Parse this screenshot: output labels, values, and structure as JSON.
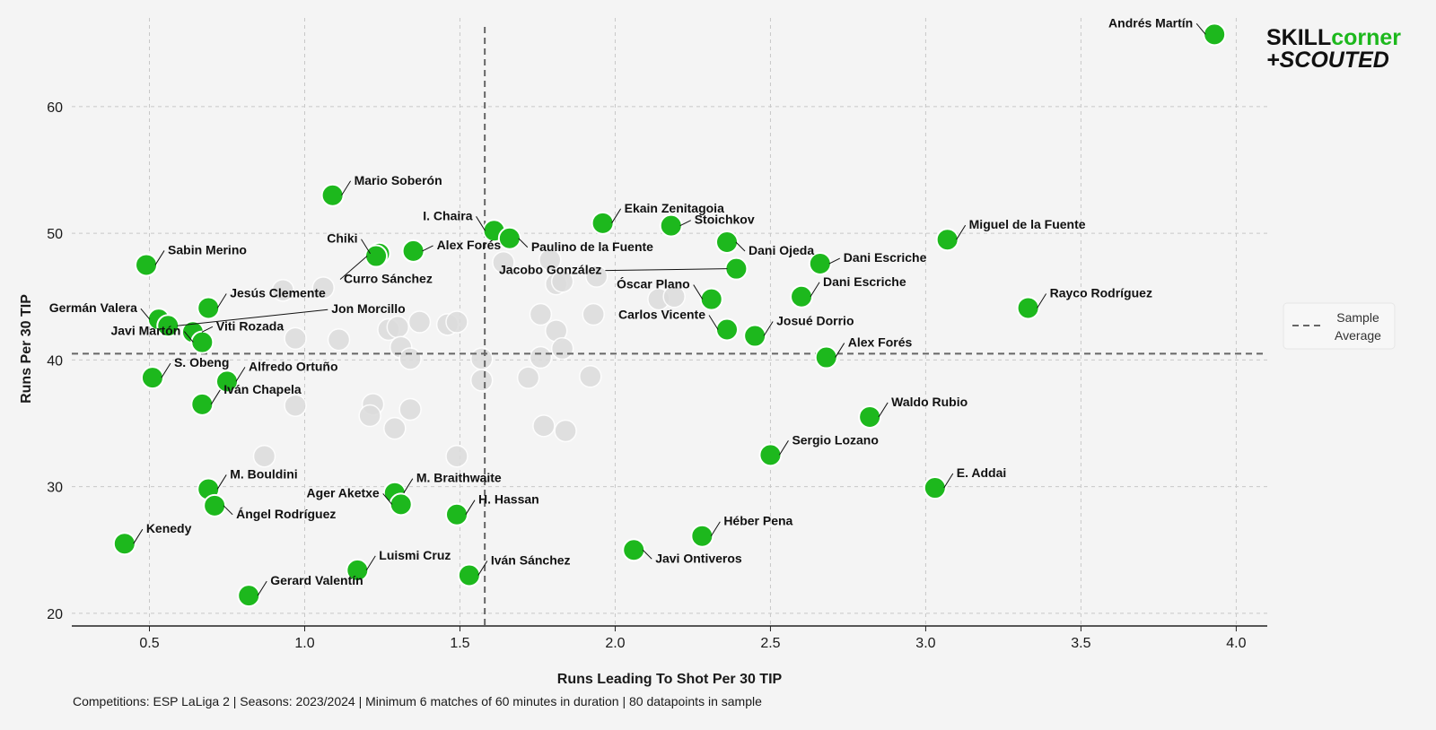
{
  "chart_data": {
    "type": "scatter",
    "xlabel": "Runs Leading To Shot Per 30 TIP",
    "ylabel": "Runs Per 30 TIP",
    "xlim": [
      0.25,
      4.1
    ],
    "ylim": [
      19,
      67
    ],
    "x_ticks": [
      0.5,
      1.0,
      1.5,
      2.0,
      2.5,
      3.0,
      3.5,
      4.0
    ],
    "x_tick_labels": [
      "0.5",
      "1.0",
      "1.5",
      "2.0",
      "2.5",
      "3.0",
      "3.5",
      "4.0"
    ],
    "y_ticks": [
      20,
      30,
      40,
      50,
      60
    ],
    "y_tick_labels": [
      "20",
      "30",
      "40",
      "50",
      "60"
    ],
    "grid": true,
    "averages": {
      "x": 1.58,
      "y": 40.5
    },
    "legend": {
      "label": "Sample Average",
      "placement": "right",
      "lines": [
        "Sample",
        "Average"
      ]
    },
    "highlight_color": "#1db81d",
    "background_color": "#dcdcdc",
    "highlighted": [
      {
        "name": "Andrés Martín",
        "x": 3.93,
        "y": 65.7,
        "label_pos": "left"
      },
      {
        "name": "Mario Soberón",
        "x": 1.09,
        "y": 53.0,
        "label_pos": "upper-right"
      },
      {
        "name": "I. Chaira",
        "x": 1.61,
        "y": 50.2,
        "label_pos": "upper-left"
      },
      {
        "name": "Ekain Zenitagoia",
        "x": 1.96,
        "y": 50.8,
        "label_pos": "upper-right"
      },
      {
        "name": "Stoichkov",
        "x": 2.18,
        "y": 50.6,
        "label_pos": "right"
      },
      {
        "name": "Miguel de la Fuente",
        "x": 3.07,
        "y": 49.5,
        "label_pos": "upper-right"
      },
      {
        "name": "Sabin Merino",
        "x": 0.49,
        "y": 47.5,
        "label_pos": "upper-right"
      },
      {
        "name": "Chiki",
        "x": 1.24,
        "y": 48.4,
        "label_pos": "upper-left"
      },
      {
        "name": "Alex Forés",
        "x": 1.35,
        "y": 48.6,
        "label_pos": "right"
      },
      {
        "name": "Curro Sánchez",
        "x": 1.23,
        "y": 48.2,
        "label_pos": "below"
      },
      {
        "name": "Paulino de la Fuente",
        "x": 1.66,
        "y": 49.6,
        "label_pos": "lower-right"
      },
      {
        "name": "Dani Ojeda",
        "x": 2.36,
        "y": 49.3,
        "label_pos": "lower-right"
      },
      {
        "name": "Dani Escriche",
        "x": 2.66,
        "y": 47.6,
        "label_pos": "right"
      },
      {
        "name": "Jacobo González",
        "x": 2.39,
        "y": 47.2,
        "label_pos": "far-left"
      },
      {
        "name": "Dani Escriche",
        "x": 2.6,
        "y": 45.0,
        "label_pos": "upper-right"
      },
      {
        "name": "Rayco Rodríguez",
        "x": 3.33,
        "y": 44.1,
        "label_pos": "upper-right"
      },
      {
        "name": "Jesús Clemente",
        "x": 0.69,
        "y": 44.1,
        "label_pos": "upper-right"
      },
      {
        "name": "Óscar Plano",
        "x": 2.31,
        "y": 44.8,
        "label_pos": "upper-left"
      },
      {
        "name": "Germán Valera",
        "x": 0.53,
        "y": 43.2,
        "label_pos": "left"
      },
      {
        "name": "Jon Morcillo",
        "x": 0.56,
        "y": 42.7,
        "label_pos": "far-right"
      },
      {
        "name": "Carlos Vicente",
        "x": 2.36,
        "y": 42.4,
        "label_pos": "upper-left"
      },
      {
        "name": "Josué Dorrio",
        "x": 2.45,
        "y": 41.9,
        "label_pos": "upper-right"
      },
      {
        "name": "Viti Rozada",
        "x": 0.64,
        "y": 42.2,
        "label_pos": "right"
      },
      {
        "name": "Javi Martón",
        "x": 0.67,
        "y": 41.4,
        "label_pos": "left"
      },
      {
        "name": "Alex Forés",
        "x": 2.68,
        "y": 40.2,
        "label_pos": "upper-right"
      },
      {
        "name": "S. Obeng",
        "x": 0.51,
        "y": 38.6,
        "label_pos": "upper-right"
      },
      {
        "name": "Alfredo Ortuño",
        "x": 0.75,
        "y": 38.3,
        "label_pos": "upper-right"
      },
      {
        "name": "Iván Chapela",
        "x": 0.67,
        "y": 36.5,
        "label_pos": "upper-right"
      },
      {
        "name": "Waldo Rubio",
        "x": 2.82,
        "y": 35.5,
        "label_pos": "upper-right"
      },
      {
        "name": "Sergio Lozano",
        "x": 2.5,
        "y": 32.5,
        "label_pos": "upper-right"
      },
      {
        "name": "E. Addai",
        "x": 3.03,
        "y": 29.9,
        "label_pos": "upper-right"
      },
      {
        "name": "M. Bouldini",
        "x": 0.69,
        "y": 29.8,
        "label_pos": "upper-right"
      },
      {
        "name": "M. Braithwaite",
        "x": 1.29,
        "y": 29.5,
        "label_pos": "upper-right"
      },
      {
        "name": "Ager Aketxe",
        "x": 1.31,
        "y": 28.6,
        "label_pos": "left"
      },
      {
        "name": "Ángel Rodríguez",
        "x": 0.71,
        "y": 28.5,
        "label_pos": "lower-right"
      },
      {
        "name": "H. Hassan",
        "x": 1.49,
        "y": 27.8,
        "label_pos": "upper-right"
      },
      {
        "name": "Héber Pena",
        "x": 2.28,
        "y": 26.1,
        "label_pos": "upper-right"
      },
      {
        "name": "Kenedy",
        "x": 0.42,
        "y": 25.5,
        "label_pos": "upper-right"
      },
      {
        "name": "Javi Ontiveros",
        "x": 2.06,
        "y": 25.0,
        "label_pos": "lower-right"
      },
      {
        "name": "Luismi Cruz",
        "x": 1.17,
        "y": 23.4,
        "label_pos": "upper-right"
      },
      {
        "name": "Iván Sánchez",
        "x": 1.53,
        "y": 23.0,
        "label_pos": "upper-right"
      },
      {
        "name": "Gerard Valentín",
        "x": 0.82,
        "y": 21.4,
        "label_pos": "upper-right"
      }
    ],
    "background": [
      {
        "x": 0.93,
        "y": 45.5
      },
      {
        "x": 1.06,
        "y": 45.7
      },
      {
        "x": 0.97,
        "y": 41.7
      },
      {
        "x": 1.11,
        "y": 41.6
      },
      {
        "x": 1.27,
        "y": 42.4
      },
      {
        "x": 1.3,
        "y": 42.6
      },
      {
        "x": 1.37,
        "y": 43.0
      },
      {
        "x": 1.46,
        "y": 42.8
      },
      {
        "x": 1.49,
        "y": 43.0
      },
      {
        "x": 1.31,
        "y": 41.0
      },
      {
        "x": 1.34,
        "y": 40.1
      },
      {
        "x": 1.22,
        "y": 36.5
      },
      {
        "x": 1.21,
        "y": 35.6
      },
      {
        "x": 1.29,
        "y": 34.6
      },
      {
        "x": 1.34,
        "y": 36.1
      },
      {
        "x": 0.97,
        "y": 36.4
      },
      {
        "x": 0.87,
        "y": 32.4
      },
      {
        "x": 1.49,
        "y": 32.4
      },
      {
        "x": 1.57,
        "y": 40.1
      },
      {
        "x": 1.57,
        "y": 38.4
      },
      {
        "x": 1.64,
        "y": 47.7
      },
      {
        "x": 1.79,
        "y": 47.9
      },
      {
        "x": 1.81,
        "y": 46.0
      },
      {
        "x": 1.83,
        "y": 46.2
      },
      {
        "x": 1.94,
        "y": 46.6
      },
      {
        "x": 1.76,
        "y": 43.6
      },
      {
        "x": 1.81,
        "y": 42.3
      },
      {
        "x": 1.83,
        "y": 40.9
      },
      {
        "x": 1.93,
        "y": 43.6
      },
      {
        "x": 1.76,
        "y": 40.2
      },
      {
        "x": 1.72,
        "y": 38.6
      },
      {
        "x": 1.92,
        "y": 38.7
      },
      {
        "x": 1.77,
        "y": 34.8
      },
      {
        "x": 1.84,
        "y": 34.4
      },
      {
        "x": 2.14,
        "y": 44.8
      },
      {
        "x": 2.19,
        "y": 45.0
      }
    ],
    "footer": "Competitions: ESP LaLiga 2 | Seasons: 2023/2024 | Minimum 6 matches of 60 minutes in duration | 80 datapoints in sample"
  },
  "logo": {
    "line1_a": "SKILL",
    "line1_b": "corner",
    "line2": "+SCOUTED",
    "dark_color": "#111111",
    "accent_color": "#1db81d"
  }
}
